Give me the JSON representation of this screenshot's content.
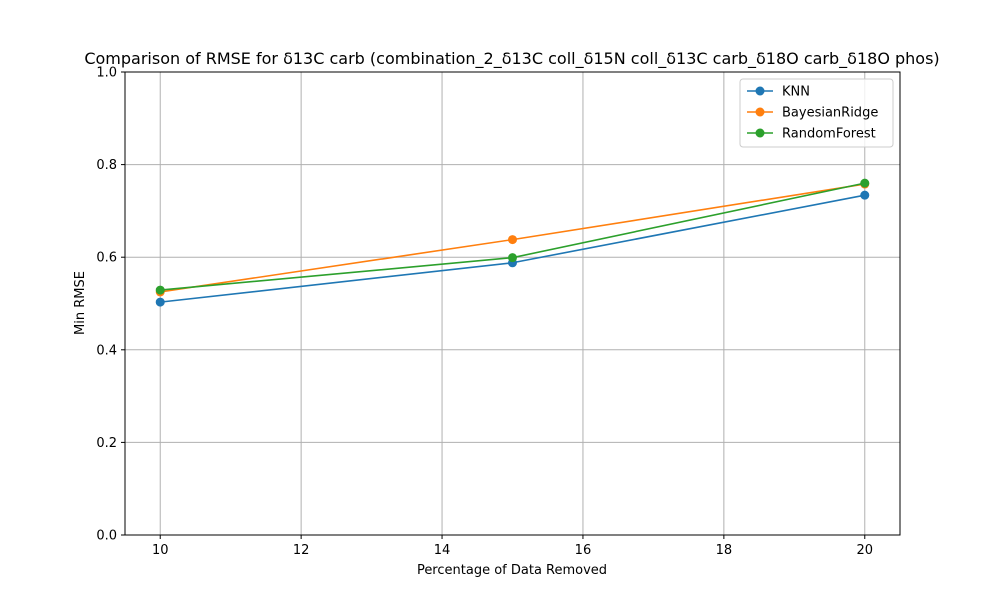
{
  "chart_data": {
    "type": "line",
    "title": "Comparison of RMSE for δ13C carb (combination_2_δ13C coll_δ15N coll_δ13C carb_δ18O carb_δ18O phos)",
    "xlabel": "Percentage of Data Removed",
    "ylabel": "Min RMSE",
    "x": [
      10,
      15,
      20
    ],
    "xlim": [
      9.5,
      20.5
    ],
    "ylim": [
      0,
      1.0
    ],
    "xticks": [
      "10",
      "12",
      "14",
      "16",
      "18",
      "20"
    ],
    "yticks": [
      "0.0",
      "0.2",
      "0.4",
      "0.6",
      "0.8",
      "1.0"
    ],
    "grid": true,
    "legend_position": "top-right",
    "series": [
      {
        "name": "KNN",
        "color": "#1f77b4",
        "values": [
          0.503,
          0.588,
          0.734
        ]
      },
      {
        "name": "BayesianRidge",
        "color": "#ff7f0e",
        "values": [
          0.525,
          0.638,
          0.758
        ]
      },
      {
        "name": "RandomForest",
        "color": "#2ca02c",
        "values": [
          0.529,
          0.599,
          0.76
        ]
      }
    ]
  }
}
